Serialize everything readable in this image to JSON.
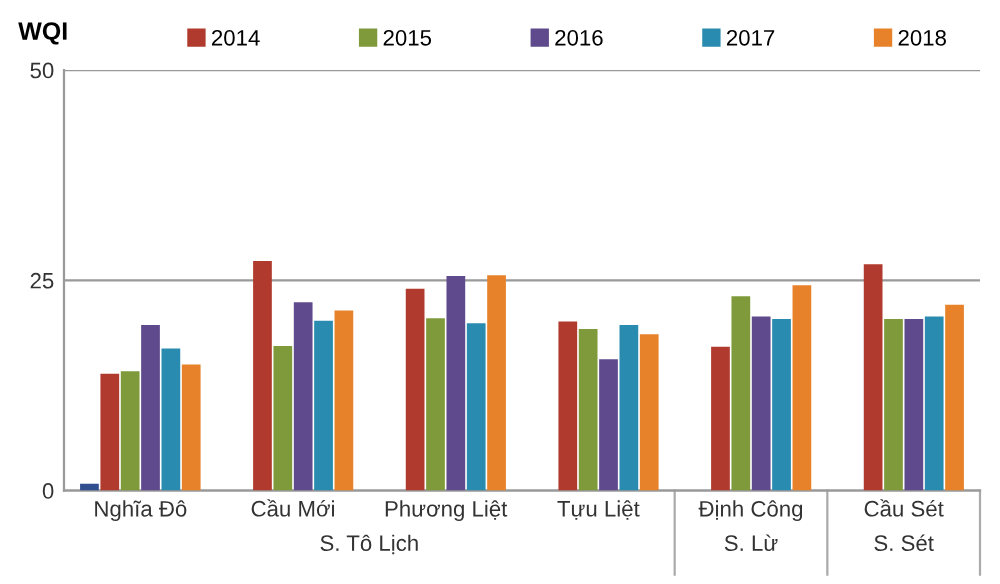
{
  "chart_data": {
    "type": "bar",
    "ylabel": "WQI",
    "categories": [
      "Nghĩa Đô",
      "Cầu Mới",
      "Phương Liệt",
      "Tựu Liệt",
      "Định Công",
      "Cầu Sét"
    ],
    "series": [
      {
        "color": "#2f4f8f",
        "values": [
          0.8,
          null,
          null,
          null,
          null,
          null
        ]
      },
      {
        "name": "2014",
        "color": "#b03a2e",
        "values": [
          13.9,
          27.3,
          24.0,
          20.1,
          17.1,
          26.9
        ]
      },
      {
        "name": "2015",
        "color": "#7f9a3a",
        "values": [
          14.2,
          17.2,
          20.5,
          19.2,
          23.1,
          20.4
        ]
      },
      {
        "name": "2016",
        "color": "#5e4a8c",
        "values": [
          19.7,
          22.4,
          25.5,
          15.6,
          20.7,
          20.4
        ]
      },
      {
        "name": "2017",
        "color": "#2a8bb0",
        "values": [
          16.9,
          20.2,
          19.9,
          19.7,
          20.4,
          20.7
        ]
      },
      {
        "name": "2018",
        "color": "#e8822a",
        "values": [
          15.0,
          21.4,
          25.6,
          18.6,
          24.4,
          22.1
        ]
      }
    ],
    "ylim": [
      0,
      50
    ],
    "yticks": [
      0,
      25,
      50
    ],
    "grid": "y",
    "legend": "top",
    "annotations": [
      "S. Tô Lịch",
      "S. Lừ",
      "S. Sét"
    ]
  }
}
